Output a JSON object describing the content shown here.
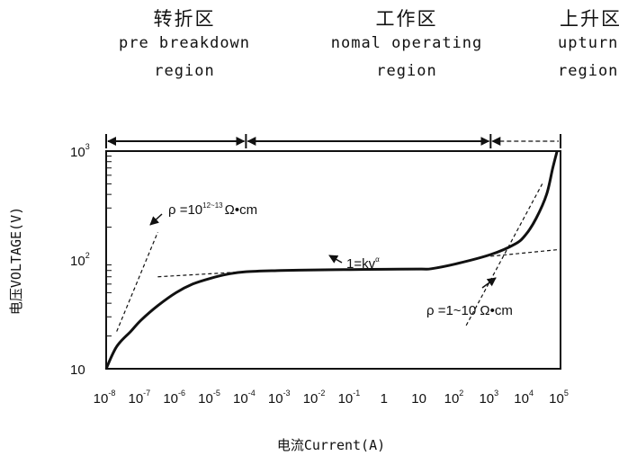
{
  "regions": [
    {
      "title_cn": "转折区",
      "title_en_1": "pre breakdown",
      "title_en_2": "region"
    },
    {
      "title_cn": "工作区",
      "title_en_1": "nomal operating",
      "title_en_2": "region"
    },
    {
      "title_cn": "上升区",
      "title_en_1": "upturn",
      "title_en_2": "region"
    }
  ],
  "chart_data": {
    "type": "line",
    "scale": "log-log",
    "xlabel": "电流Current(A)",
    "ylabel": "电压VOLTAGE(V)",
    "xlim": [
      1e-08,
      100000.0
    ],
    "ylim": [
      10,
      1000
    ],
    "x_ticks": [
      {
        "base": "10",
        "exp": "-8"
      },
      {
        "base": "10",
        "exp": "-7"
      },
      {
        "base": "10",
        "exp": "-6"
      },
      {
        "base": "10",
        "exp": "-5"
      },
      {
        "base": "10",
        "exp": "-4"
      },
      {
        "base": "10",
        "exp": "-3"
      },
      {
        "base": "10",
        "exp": "-2"
      },
      {
        "base": "10",
        "exp": "-1"
      },
      {
        "base": "1",
        "exp": ""
      },
      {
        "base": "10",
        "exp": ""
      },
      {
        "base": "10",
        "exp": "2"
      },
      {
        "base": "10",
        "exp": "3"
      },
      {
        "base": "10",
        "exp": "4"
      },
      {
        "base": "10",
        "exp": "5"
      }
    ],
    "y_ticks": [
      {
        "base": "10",
        "exp": ""
      },
      {
        "base": "10",
        "exp": "2"
      },
      {
        "base": "10",
        "exp": "3"
      }
    ],
    "series": [
      {
        "x": [
          1e-08,
          2e-08,
          5e-08,
          1e-07,
          3e-07,
          1e-06,
          3e-06,
          1e-05,
          3e-05,
          0.0001,
          0.001,
          0.01,
          0.1,
          1,
          10,
          20,
          100,
          1000,
          5000,
          10000.0,
          20000.0,
          40000.0,
          60000.0,
          80000.0
        ],
        "y": [
          10,
          16,
          22,
          28,
          38,
          50,
          60,
          68,
          74,
          78,
          80,
          81,
          81.5,
          82,
          82.5,
          83,
          92,
          112,
          140,
          170,
          240,
          400,
          700,
          1000
        ]
      }
    ],
    "guides": [
      {
        "x": [
          2e-08,
          3e-07
        ],
        "y": [
          22,
          180
        ]
      },
      {
        "x": [
          3e-07,
          0.0001
        ],
        "y": [
          70,
          78
        ]
      },
      {
        "x": [
          1000,
          100000.0
        ],
        "y": [
          108,
          125
        ]
      },
      {
        "x": [
          200,
          30000.0
        ],
        "y": [
          25,
          500
        ]
      }
    ],
    "region_bounds": [
      1e-08,
      0.0001,
      1000,
      100000.0
    ],
    "annotations": [
      {
        "prefix": "ρ =10",
        "sup": "12~13",
        "suffix": "Ω•cm"
      },
      {
        "prefix": "1=kv",
        "sup": "α",
        "suffix": ""
      },
      {
        "prefix": "ρ =1~10 Ω•cm",
        "sup": "",
        "suffix": ""
      }
    ]
  }
}
